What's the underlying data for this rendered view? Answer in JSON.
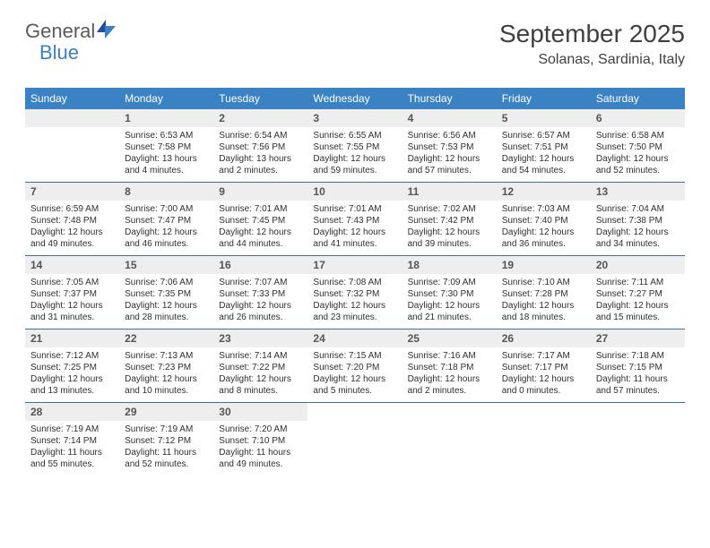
{
  "logo": {
    "part1": "General",
    "part2": "Blue"
  },
  "header": {
    "title": "September 2025",
    "location": "Solanas, Sardinia, Italy"
  },
  "colors": {
    "header_bg": "#3b82c4",
    "header_text": "#ffffff",
    "daynum_bg": "#eeeeee",
    "week_border": "#3b6fa0",
    "body_text": "#303030"
  },
  "dayNames": [
    "Sunday",
    "Monday",
    "Tuesday",
    "Wednesday",
    "Thursday",
    "Friday",
    "Saturday"
  ],
  "weeks": [
    [
      {
        "n": "",
        "sunrise": "",
        "sunset": "",
        "daylight": ""
      },
      {
        "n": "1",
        "sunrise": "Sunrise: 6:53 AM",
        "sunset": "Sunset: 7:58 PM",
        "daylight": "Daylight: 13 hours and 4 minutes."
      },
      {
        "n": "2",
        "sunrise": "Sunrise: 6:54 AM",
        "sunset": "Sunset: 7:56 PM",
        "daylight": "Daylight: 13 hours and 2 minutes."
      },
      {
        "n": "3",
        "sunrise": "Sunrise: 6:55 AM",
        "sunset": "Sunset: 7:55 PM",
        "daylight": "Daylight: 12 hours and 59 minutes."
      },
      {
        "n": "4",
        "sunrise": "Sunrise: 6:56 AM",
        "sunset": "Sunset: 7:53 PM",
        "daylight": "Daylight: 12 hours and 57 minutes."
      },
      {
        "n": "5",
        "sunrise": "Sunrise: 6:57 AM",
        "sunset": "Sunset: 7:51 PM",
        "daylight": "Daylight: 12 hours and 54 minutes."
      },
      {
        "n": "6",
        "sunrise": "Sunrise: 6:58 AM",
        "sunset": "Sunset: 7:50 PM",
        "daylight": "Daylight: 12 hours and 52 minutes."
      }
    ],
    [
      {
        "n": "7",
        "sunrise": "Sunrise: 6:59 AM",
        "sunset": "Sunset: 7:48 PM",
        "daylight": "Daylight: 12 hours and 49 minutes."
      },
      {
        "n": "8",
        "sunrise": "Sunrise: 7:00 AM",
        "sunset": "Sunset: 7:47 PM",
        "daylight": "Daylight: 12 hours and 46 minutes."
      },
      {
        "n": "9",
        "sunrise": "Sunrise: 7:01 AM",
        "sunset": "Sunset: 7:45 PM",
        "daylight": "Daylight: 12 hours and 44 minutes."
      },
      {
        "n": "10",
        "sunrise": "Sunrise: 7:01 AM",
        "sunset": "Sunset: 7:43 PM",
        "daylight": "Daylight: 12 hours and 41 minutes."
      },
      {
        "n": "11",
        "sunrise": "Sunrise: 7:02 AM",
        "sunset": "Sunset: 7:42 PM",
        "daylight": "Daylight: 12 hours and 39 minutes."
      },
      {
        "n": "12",
        "sunrise": "Sunrise: 7:03 AM",
        "sunset": "Sunset: 7:40 PM",
        "daylight": "Daylight: 12 hours and 36 minutes."
      },
      {
        "n": "13",
        "sunrise": "Sunrise: 7:04 AM",
        "sunset": "Sunset: 7:38 PM",
        "daylight": "Daylight: 12 hours and 34 minutes."
      }
    ],
    [
      {
        "n": "14",
        "sunrise": "Sunrise: 7:05 AM",
        "sunset": "Sunset: 7:37 PM",
        "daylight": "Daylight: 12 hours and 31 minutes."
      },
      {
        "n": "15",
        "sunrise": "Sunrise: 7:06 AM",
        "sunset": "Sunset: 7:35 PM",
        "daylight": "Daylight: 12 hours and 28 minutes."
      },
      {
        "n": "16",
        "sunrise": "Sunrise: 7:07 AM",
        "sunset": "Sunset: 7:33 PM",
        "daylight": "Daylight: 12 hours and 26 minutes."
      },
      {
        "n": "17",
        "sunrise": "Sunrise: 7:08 AM",
        "sunset": "Sunset: 7:32 PM",
        "daylight": "Daylight: 12 hours and 23 minutes."
      },
      {
        "n": "18",
        "sunrise": "Sunrise: 7:09 AM",
        "sunset": "Sunset: 7:30 PM",
        "daylight": "Daylight: 12 hours and 21 minutes."
      },
      {
        "n": "19",
        "sunrise": "Sunrise: 7:10 AM",
        "sunset": "Sunset: 7:28 PM",
        "daylight": "Daylight: 12 hours and 18 minutes."
      },
      {
        "n": "20",
        "sunrise": "Sunrise: 7:11 AM",
        "sunset": "Sunset: 7:27 PM",
        "daylight": "Daylight: 12 hours and 15 minutes."
      }
    ],
    [
      {
        "n": "21",
        "sunrise": "Sunrise: 7:12 AM",
        "sunset": "Sunset: 7:25 PM",
        "daylight": "Daylight: 12 hours and 13 minutes."
      },
      {
        "n": "22",
        "sunrise": "Sunrise: 7:13 AM",
        "sunset": "Sunset: 7:23 PM",
        "daylight": "Daylight: 12 hours and 10 minutes."
      },
      {
        "n": "23",
        "sunrise": "Sunrise: 7:14 AM",
        "sunset": "Sunset: 7:22 PM",
        "daylight": "Daylight: 12 hours and 8 minutes."
      },
      {
        "n": "24",
        "sunrise": "Sunrise: 7:15 AM",
        "sunset": "Sunset: 7:20 PM",
        "daylight": "Daylight: 12 hours and 5 minutes."
      },
      {
        "n": "25",
        "sunrise": "Sunrise: 7:16 AM",
        "sunset": "Sunset: 7:18 PM",
        "daylight": "Daylight: 12 hours and 2 minutes."
      },
      {
        "n": "26",
        "sunrise": "Sunrise: 7:17 AM",
        "sunset": "Sunset: 7:17 PM",
        "daylight": "Daylight: 12 hours and 0 minutes."
      },
      {
        "n": "27",
        "sunrise": "Sunrise: 7:18 AM",
        "sunset": "Sunset: 7:15 PM",
        "daylight": "Daylight: 11 hours and 57 minutes."
      }
    ],
    [
      {
        "n": "28",
        "sunrise": "Sunrise: 7:19 AM",
        "sunset": "Sunset: 7:14 PM",
        "daylight": "Daylight: 11 hours and 55 minutes."
      },
      {
        "n": "29",
        "sunrise": "Sunrise: 7:19 AM",
        "sunset": "Sunset: 7:12 PM",
        "daylight": "Daylight: 11 hours and 52 minutes."
      },
      {
        "n": "30",
        "sunrise": "Sunrise: 7:20 AM",
        "sunset": "Sunset: 7:10 PM",
        "daylight": "Daylight: 11 hours and 49 minutes."
      },
      {
        "n": "",
        "sunrise": "",
        "sunset": "",
        "daylight": ""
      },
      {
        "n": "",
        "sunrise": "",
        "sunset": "",
        "daylight": ""
      },
      {
        "n": "",
        "sunrise": "",
        "sunset": "",
        "daylight": ""
      },
      {
        "n": "",
        "sunrise": "",
        "sunset": "",
        "daylight": ""
      }
    ]
  ]
}
